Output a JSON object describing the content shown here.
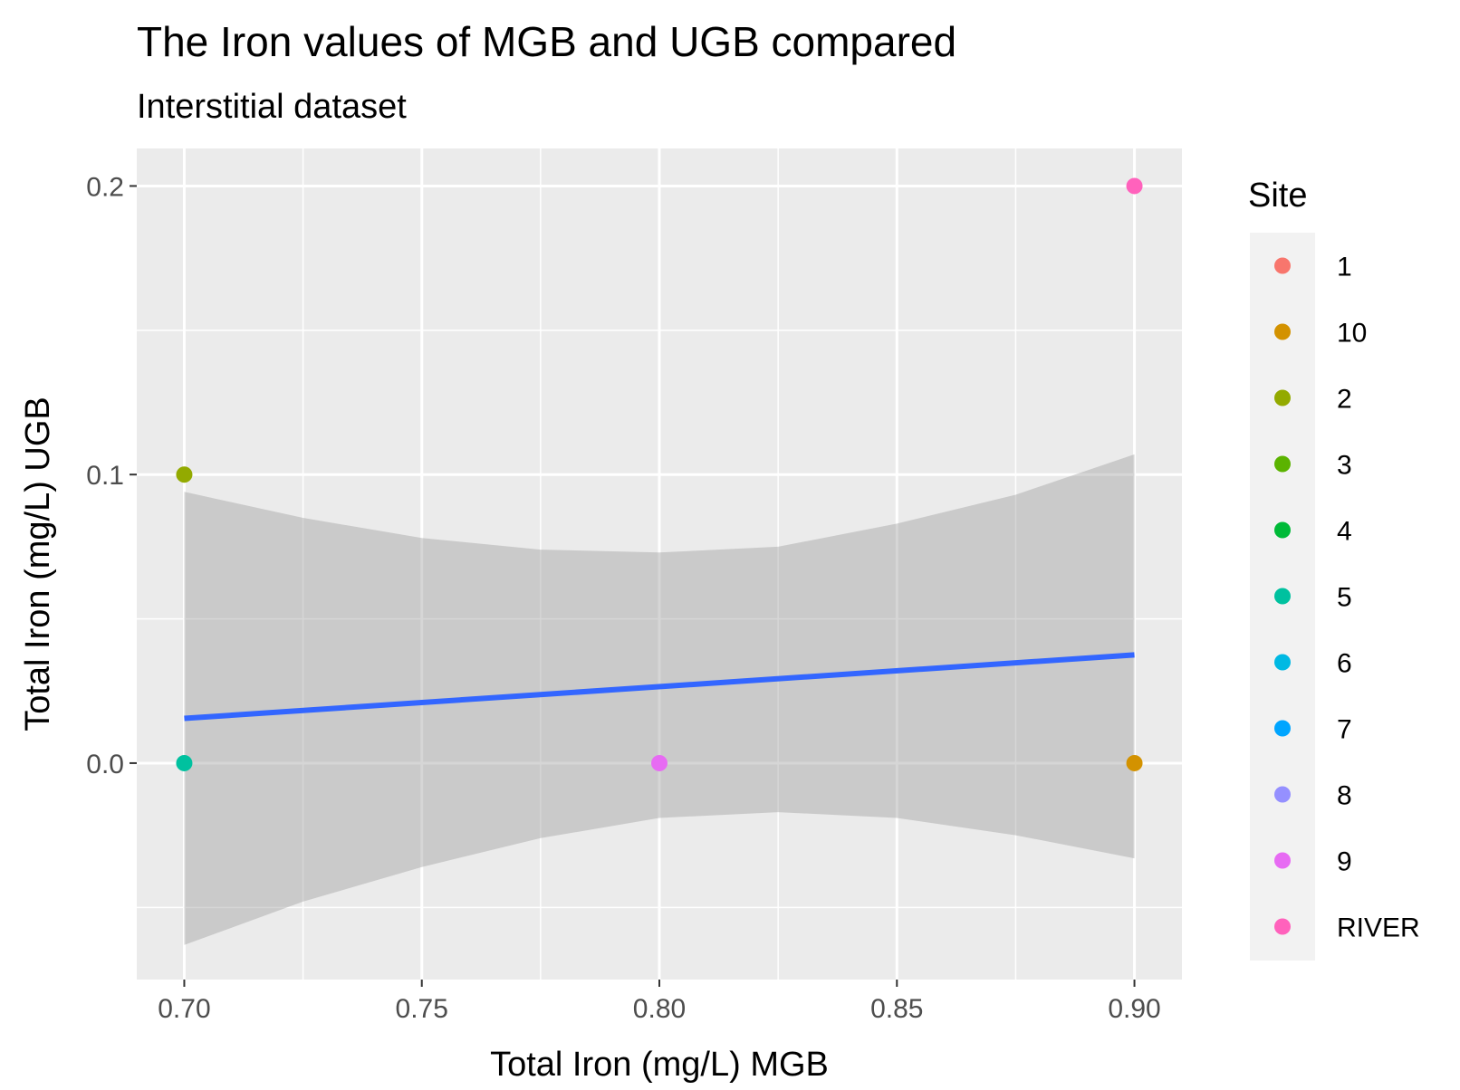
{
  "chart_data": {
    "type": "scatter",
    "title": "The Iron values of MGB and UGB compared",
    "subtitle": "Interstitial dataset",
    "xlabel": "Total Iron (mg/L) MGB",
    "ylabel": "Total Iron (mg/L) UGB",
    "xlim": [
      0.69,
      0.91
    ],
    "ylim": [
      -0.075,
      0.213
    ],
    "x_ticks": [
      0.7,
      0.75,
      0.8,
      0.85,
      0.9
    ],
    "x_tick_labels": [
      "0.70",
      "0.75",
      "0.80",
      "0.85",
      "0.90"
    ],
    "y_ticks": [
      0.0,
      0.1,
      0.2
    ],
    "y_tick_labels": [
      "0.0",
      "0.1",
      "0.2"
    ],
    "grid": true,
    "points": [
      {
        "site": "5",
        "x": 0.7,
        "y": 0.0
      },
      {
        "site": "2",
        "x": 0.7,
        "y": 0.1
      },
      {
        "site": "9",
        "x": 0.8,
        "y": 0.0
      },
      {
        "site": "10",
        "x": 0.9,
        "y": 0.0
      },
      {
        "site": "RIVER",
        "x": 0.9,
        "y": 0.2
      }
    ],
    "trend_line": {
      "method": "lm",
      "color": "#3366FF",
      "x": [
        0.7,
        0.9
      ],
      "y": [
        0.0155,
        0.0375
      ],
      "confidence_band": {
        "x": [
          0.7,
          0.725,
          0.75,
          0.775,
          0.8,
          0.825,
          0.85,
          0.875,
          0.9
        ],
        "lower": [
          -0.063,
          -0.048,
          -0.036,
          -0.026,
          -0.019,
          -0.017,
          -0.019,
          -0.025,
          -0.033
        ],
        "upper": [
          0.094,
          0.085,
          0.078,
          0.074,
          0.073,
          0.075,
          0.083,
          0.093,
          0.107
        ]
      }
    },
    "legend": {
      "title": "Site",
      "position": "right",
      "items": [
        {
          "label": "1",
          "color": "#F8766D"
        },
        {
          "label": "10",
          "color": "#D39200"
        },
        {
          "label": "2",
          "color": "#93AA00"
        },
        {
          "label": "3",
          "color": "#5BB300"
        },
        {
          "label": "4",
          "color": "#00BA38"
        },
        {
          "label": "5",
          "color": "#00C19F"
        },
        {
          "label": "6",
          "color": "#00B9E3"
        },
        {
          "label": "7",
          "color": "#00A5FF"
        },
        {
          "label": "8",
          "color": "#9590FF"
        },
        {
          "label": "9",
          "color": "#E76BF3"
        },
        {
          "label": "RIVER",
          "color": "#FF62BC"
        }
      ]
    }
  }
}
